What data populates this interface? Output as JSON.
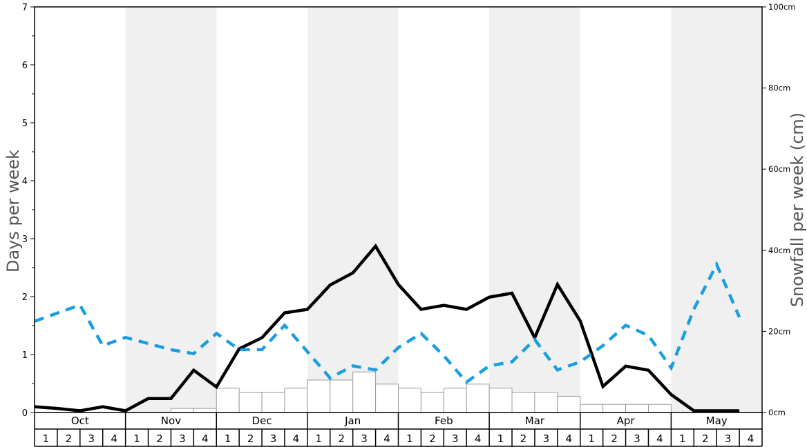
{
  "chart_data": {
    "type": "bar+line",
    "title": "",
    "ylabel_left": "Days per week",
    "ylabel_right": "Snowfall per week (cm)",
    "ylim_left": [
      0,
      7
    ],
    "ylim_right": [
      0,
      100
    ],
    "left_ticks": [
      "0",
      "1",
      "2",
      "3",
      "4",
      "5",
      "6",
      "7"
    ],
    "right_ticks": [
      "0cm",
      "20cm",
      "40cm",
      "60cm",
      "80cm",
      "100cm"
    ],
    "right_tick_values": [
      0,
      20,
      40,
      60,
      80,
      100
    ],
    "months": [
      "Oct",
      "Nov",
      "Dec",
      "Jan",
      "Feb",
      "Mar",
      "Apr",
      "May"
    ],
    "weeks": [
      "1",
      "2",
      "3",
      "4"
    ],
    "shaded_months": [
      1,
      3,
      5,
      7
    ],
    "colors": {
      "shade": "#f0f0f0",
      "bar_fill": "#ffffff",
      "bar_stroke": "#999999",
      "black_line": "#000000",
      "dashed_line": "#1a9ee0",
      "axis": "#000000",
      "label": "#555555"
    },
    "snowfall_bars_cm": [
      0,
      0,
      0,
      0,
      0,
      0,
      1,
      1,
      6,
      5,
      5,
      6,
      8,
      8,
      10,
      7,
      6,
      5,
      6,
      7,
      6,
      5,
      5,
      4,
      2,
      2,
      2,
      2,
      0,
      0,
      0,
      0
    ],
    "series": [
      {
        "style": "solid-black",
        "axis": "left",
        "values": [
          0.1,
          0.07,
          0.03,
          0.1,
          0.03,
          0.24,
          0.24,
          0.73,
          0.44,
          1.1,
          1.29,
          1.72,
          1.78,
          2.2,
          2.41,
          2.87,
          2.21,
          1.78,
          1.85,
          1.78,
          1.99,
          2.06,
          1.29,
          2.21,
          1.58,
          0.45,
          0.8,
          0.73,
          0.31,
          0.03,
          0.03,
          0.03
        ]
      },
      {
        "style": "dashed-blue",
        "axis": "right",
        "values": [
          22.5,
          24.5,
          26.5,
          16.5,
          18.5,
          17,
          15.5,
          14.5,
          19.5,
          15.5,
          15.5,
          21.5,
          15,
          8.5,
          11.5,
          10.5,
          16,
          19.5,
          14,
          7.5,
          11.5,
          12.5,
          18,
          10.5,
          12.5,
          16.5,
          21.5,
          19,
          11,
          25.5,
          36.5,
          23.5
        ]
      }
    ]
  }
}
